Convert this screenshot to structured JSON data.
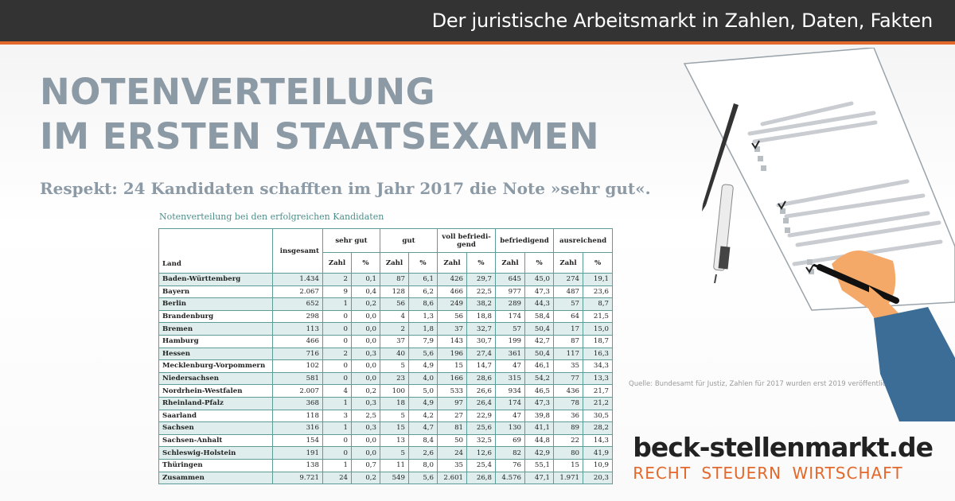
{
  "header": {
    "title": "Der juristische Arbeitsmarkt in Zahlen, Daten, Fakten",
    "accent_color": "#e2682c"
  },
  "headline": {
    "line1": "NOTENVERTEILUNG",
    "line2": "IM ERSTEN STAATSEXAMEN"
  },
  "subline": "Respekt: 24 Kandidaten schafften im Jahr 2017 die Note »sehr gut«.",
  "table": {
    "caption": "Notenverteilung bei den erfolgreichen Kandidaten",
    "land_header": "Land",
    "insgesamt_header": "insgesamt",
    "groups": [
      "sehr gut",
      "gut",
      "voll befriedi-\ngend",
      "befriedigend",
      "ausreichend"
    ],
    "zahl_label": "Zahl",
    "pct_label": "%",
    "rows": [
      [
        "Baden-Württemberg",
        "1.434",
        "2",
        "0,1",
        "87",
        "6,1",
        "426",
        "29,7",
        "645",
        "45,0",
        "274",
        "19,1"
      ],
      [
        "Bayern",
        "2.067",
        "9",
        "0,4",
        "128",
        "6,2",
        "466",
        "22,5",
        "977",
        "47,3",
        "487",
        "23,6"
      ],
      [
        "Berlin",
        "652",
        "1",
        "0,2",
        "56",
        "8,6",
        "249",
        "38,2",
        "289",
        "44,3",
        "57",
        "8,7"
      ],
      [
        "Brandenburg",
        "298",
        "0",
        "0,0",
        "4",
        "1,3",
        "56",
        "18,8",
        "174",
        "58,4",
        "64",
        "21,5"
      ],
      [
        "Bremen",
        "113",
        "0",
        "0,0",
        "2",
        "1,8",
        "37",
        "32,7",
        "57",
        "50,4",
        "17",
        "15,0"
      ],
      [
        "Hamburg",
        "466",
        "0",
        "0,0",
        "37",
        "7,9",
        "143",
        "30,7",
        "199",
        "42,7",
        "87",
        "18,7"
      ],
      [
        "Hessen",
        "716",
        "2",
        "0,3",
        "40",
        "5,6",
        "196",
        "27,4",
        "361",
        "50,4",
        "117",
        "16,3"
      ],
      [
        "Mecklenburg-Vorpommern",
        "102",
        "0",
        "0,0",
        "5",
        "4,9",
        "15",
        "14,7",
        "47",
        "46,1",
        "35",
        "34,3"
      ],
      [
        "Niedersachsen",
        "581",
        "0",
        "0,0",
        "23",
        "4,0",
        "166",
        "28,6",
        "315",
        "54,2",
        "77",
        "13,3"
      ],
      [
        "Nordrhein-Westfalen",
        "2.007",
        "4",
        "0,2",
        "100",
        "5,0",
        "533",
        "26,6",
        "934",
        "46,5",
        "436",
        "21,7"
      ],
      [
        "Rheinland-Pfalz",
        "368",
        "1",
        "0,3",
        "18",
        "4,9",
        "97",
        "26,4",
        "174",
        "47,3",
        "78",
        "21,2"
      ],
      [
        "Saarland",
        "118",
        "3",
        "2,5",
        "5",
        "4,2",
        "27",
        "22,9",
        "47",
        "39,8",
        "36",
        "30,5"
      ],
      [
        "Sachsen",
        "316",
        "1",
        "0,3",
        "15",
        "4,7",
        "81",
        "25,6",
        "130",
        "41,1",
        "89",
        "28,2"
      ],
      [
        "Sachsen-Anhalt",
        "154",
        "0",
        "0,0",
        "13",
        "8,4",
        "50",
        "32,5",
        "69",
        "44,8",
        "22",
        "14,3"
      ],
      [
        "Schleswig-Holstein",
        "191",
        "0",
        "0,0",
        "5",
        "2,6",
        "24",
        "12,6",
        "82",
        "42,9",
        "80",
        "41,9"
      ],
      [
        "Thüringen",
        "138",
        "1",
        "0,7",
        "11",
        "8,0",
        "35",
        "25,4",
        "76",
        "55,1",
        "15",
        "10,9"
      ],
      [
        "Zusammen",
        "9.721",
        "24",
        "0,2",
        "549",
        "5,6",
        "2.601",
        "26,8",
        "4.576",
        "47,1",
        "1.971",
        "20,3"
      ]
    ]
  },
  "source": "Quelle: Bundesamt für Justiz, Zahlen für 2017 wurden erst 2019 veröffentlicht.",
  "brand": {
    "name": "beck-stellenmarkt.de",
    "tagline": "RECHT STEUERN WIRTSCHAFT"
  },
  "illustration": {
    "icons": [
      "document-icon",
      "pen-icon",
      "hand-writing-icon"
    ]
  }
}
